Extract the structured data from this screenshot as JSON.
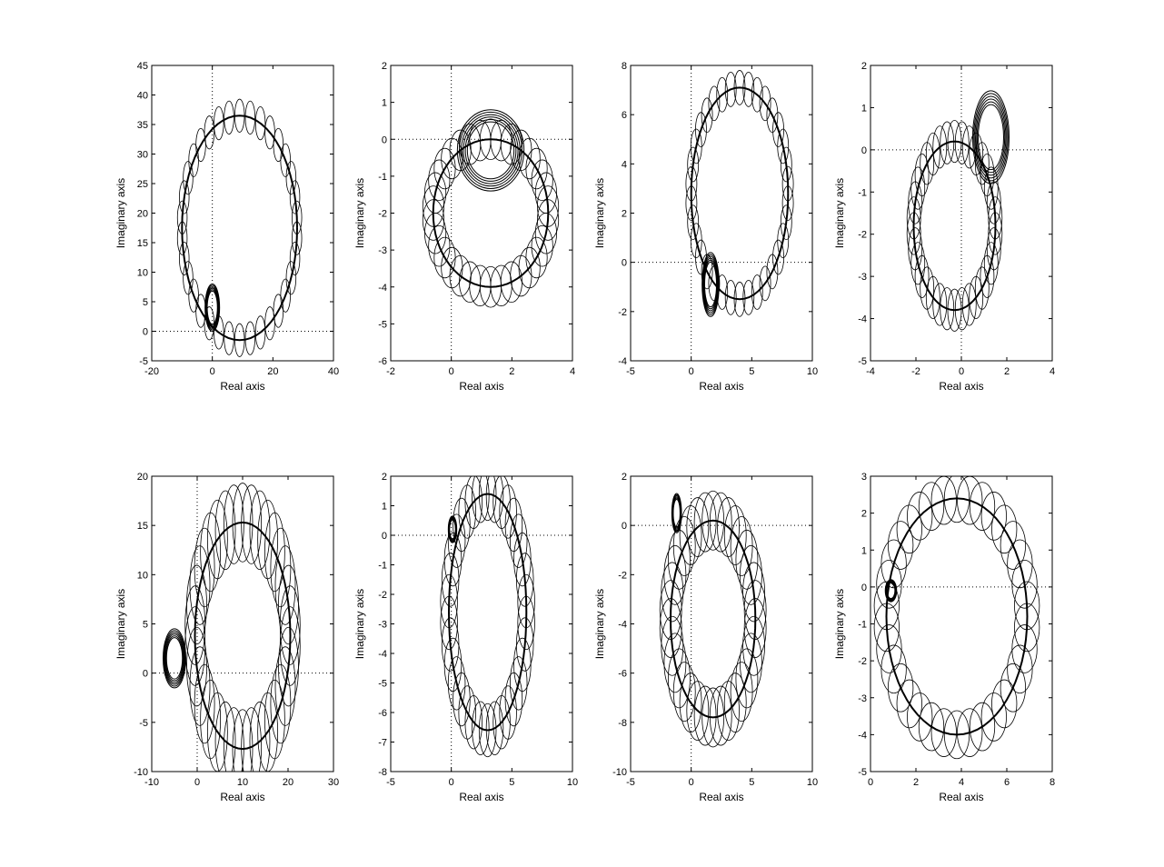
{
  "figure": {
    "background": "#ffffff",
    "line_color": "#000000",
    "layout": "2 rows x 4 columns"
  },
  "chart_data": [
    {
      "type": "line",
      "title": "",
      "xlabel": "Real axis",
      "ylabel": "Imaginary axis",
      "xlim": [
        -20,
        40
      ],
      "ylim": [
        -5,
        45
      ],
      "xticks": [
        "-20",
        "0",
        "20",
        "40"
      ],
      "yticks": [
        "-5",
        "0",
        "5",
        "10",
        "15",
        "20",
        "25",
        "30",
        "35",
        "40",
        "45"
      ],
      "grid": "dotted zero lines",
      "center_loop": {
        "center": [
          9,
          17.5
        ],
        "radius_x": 19,
        "radius_y": 19
      },
      "ellipse_size": [
        1.6,
        2.8
      ],
      "inner_loop": {
        "center": [
          0,
          4
        ],
        "radius_x": 2.4,
        "radius_y": 4
      },
      "series": [
        {
          "values": []
        }
      ]
    },
    {
      "type": "line",
      "title": "",
      "xlabel": "Real axis",
      "ylabel": "Imaginary axis",
      "xlim": [
        -2,
        4
      ],
      "ylim": [
        -6,
        2
      ],
      "xticks": [
        "-2",
        "0",
        "2",
        "4"
      ],
      "yticks": [
        "-6",
        "-5",
        "-4",
        "-3",
        "-2",
        "-1",
        "0",
        "1",
        "2"
      ],
      "grid": "dotted zero lines",
      "center_loop": {
        "center": [
          1.3,
          -2.0
        ],
        "radius_x": 1.9,
        "radius_y": 2.0
      },
      "ellipse_size": [
        0.35,
        0.55
      ],
      "inner_loop": {
        "center": [
          1.3,
          -0.3
        ],
        "radius_x": 1.1,
        "radius_y": 1.1
      },
      "series": [
        {
          "values": []
        }
      ]
    },
    {
      "type": "line",
      "title": "",
      "xlabel": "Real axis",
      "ylabel": "Imaginary axis",
      "xlim": [
        -5,
        10
      ],
      "ylim": [
        -4,
        8
      ],
      "xticks": [
        "-5",
        "0",
        "5",
        "10"
      ],
      "yticks": [
        "-4",
        "-2",
        "0",
        "2",
        "4",
        "6",
        "8"
      ],
      "grid": "dotted zero lines",
      "center_loop": {
        "center": [
          4,
          2.8
        ],
        "radius_x": 4.0,
        "radius_y": 4.3
      },
      "ellipse_size": [
        0.45,
        0.7
      ],
      "inner_loop": {
        "center": [
          1.6,
          -0.9
        ],
        "radius_x": 0.7,
        "radius_y": 1.3
      },
      "series": [
        {
          "values": []
        }
      ]
    },
    {
      "type": "line",
      "title": "",
      "xlabel": "Real axis",
      "ylabel": "Imaginary axis",
      "xlim": [
        -4,
        4
      ],
      "ylim": [
        -5,
        2
      ],
      "xticks": [
        "-4",
        "-2",
        "0",
        "2",
        "4"
      ],
      "yticks": [
        "-5",
        "-4",
        "-3",
        "-2",
        "-1",
        "0",
        "1",
        "2"
      ],
      "grid": "dotted zero lines",
      "center_loop": {
        "center": [
          -0.3,
          -1.8
        ],
        "radius_x": 1.8,
        "radius_y": 2.0
      },
      "ellipse_size": [
        0.3,
        0.5
      ],
      "inner_loop": {
        "center": [
          1.3,
          0.3
        ],
        "radius_x": 0.8,
        "radius_y": 1.1
      },
      "series": [
        {
          "values": []
        }
      ]
    },
    {
      "type": "line",
      "title": "",
      "xlabel": "Real axis",
      "ylabel": "Imaginary axis",
      "xlim": [
        -10,
        30
      ],
      "ylim": [
        -10,
        20
      ],
      "xticks": [
        "-10",
        "0",
        "10",
        "20",
        "30"
      ],
      "yticks": [
        "-10",
        "-5",
        "0",
        "5",
        "10",
        "15",
        "20"
      ],
      "grid": "dotted zero lines",
      "center_loop": {
        "center": [
          10,
          3.8
        ],
        "radius_x": 10.5,
        "radius_y": 11.5
      },
      "ellipse_size": [
        2.2,
        4.0
      ],
      "inner_loop": {
        "center": [
          -5,
          1.5
        ],
        "radius_x": 2.5,
        "radius_y": 3.0
      },
      "series": [
        {
          "values": []
        }
      ]
    },
    {
      "type": "line",
      "title": "",
      "xlabel": "Real axis",
      "ylabel": "Imaginary axis",
      "xlim": [
        -5,
        10
      ],
      "ylim": [
        -8,
        2
      ],
      "xticks": [
        "-5",
        "0",
        "5",
        "10"
      ],
      "yticks": [
        "-8",
        "-7",
        "-6",
        "-5",
        "-4",
        "-3",
        "-2",
        "-1",
        "0",
        "1",
        "2"
      ],
      "grid": "dotted zero lines",
      "center_loop": {
        "center": [
          3.0,
          -2.6
        ],
        "radius_x": 3.2,
        "radius_y": 4.0
      },
      "ellipse_size": [
        0.7,
        0.9
      ],
      "inner_loop": {
        "center": [
          0.1,
          0.2
        ],
        "radius_x": 0.35,
        "radius_y": 0.45
      },
      "series": [
        {
          "values": []
        }
      ]
    },
    {
      "type": "line",
      "title": "",
      "xlabel": "Real axis",
      "ylabel": "Imaginary axis",
      "xlim": [
        -5,
        10
      ],
      "ylim": [
        -10,
        2
      ],
      "xticks": [
        "-5",
        "0",
        "5",
        "10"
      ],
      "yticks": [
        "-10",
        "-8",
        "-6",
        "-4",
        "-2",
        "0",
        "2"
      ],
      "grid": "dotted zero lines",
      "center_loop": {
        "center": [
          1.8,
          -3.8
        ],
        "radius_x": 3.5,
        "radius_y": 4.0
      },
      "ellipse_size": [
        0.9,
        1.2
      ],
      "inner_loop": {
        "center": [
          -1.2,
          0.5
        ],
        "radius_x": 0.4,
        "radius_y": 0.8
      },
      "series": [
        {
          "values": []
        }
      ]
    },
    {
      "type": "line",
      "title": "",
      "xlabel": "Real axis",
      "ylabel": "Imaginary axis",
      "xlim": [
        0,
        8
      ],
      "ylim": [
        -5,
        3
      ],
      "xticks": [
        "0",
        "2",
        "4",
        "6",
        "8"
      ],
      "yticks": [
        "-5",
        "-4",
        "-3",
        "-2",
        "-1",
        "0",
        "1",
        "2",
        "3"
      ],
      "grid": "dotted zero lines",
      "center_loop": {
        "center": [
          3.8,
          -0.8
        ],
        "radius_x": 3.1,
        "radius_y": 3.2
      },
      "ellipse_size": [
        0.55,
        0.65
      ],
      "inner_loop": {
        "center": [
          0.9,
          -0.1
        ],
        "radius_x": 0.25,
        "radius_y": 0.3
      },
      "series": [
        {
          "values": []
        }
      ]
    }
  ]
}
